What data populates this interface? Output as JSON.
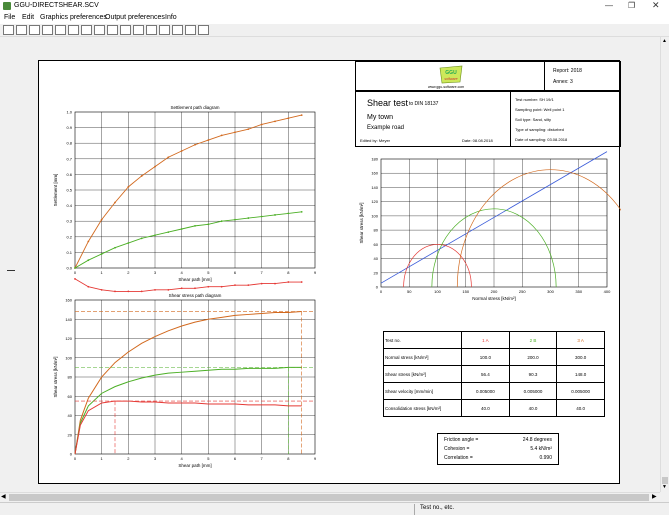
{
  "window": {
    "title": "GGU-DIRECTSHEAR.SCV"
  },
  "menu": [
    "File",
    "Edit",
    "Graphics preferences",
    "Output preferences",
    "Info"
  ],
  "toolbar_icons": [
    "new-icon",
    "open-icon",
    "save-icon",
    "save-as-icon",
    "print-icon",
    "filter-icon",
    "zoom-icon",
    "zoom-in-icon",
    "zoom-out-icon",
    "move-icon",
    "page-icon",
    "arrow-icon",
    "copy-icon",
    "paste-icon",
    "export-icon",
    "help-icon"
  ],
  "header": {
    "logo_text": "GGU software",
    "logo_url": "www.ggu-software.com",
    "report": "Report: 2018",
    "annex": "Annex: 3",
    "test_title": "Shear test",
    "test_norm": "to DIN 18137",
    "location": "My town",
    "project": "Example road",
    "edited_by": "Edited by:  Meyer",
    "date": "Date:  08.08.2018",
    "details": [
      "Test number:  SH 19/1",
      "Sampling point:  Well point 1",
      "Soil type:  Sand, silty",
      "Type of sampling:  disturbed",
      "Date of sampling:  03.08.2018"
    ]
  },
  "settlement_chart": {
    "title": "Settlement path diagram",
    "xlabel": "Shear path [mm]",
    "ylabel": "Settlement [mm]",
    "xticks": [
      "0",
      "1",
      "2",
      "3",
      "4",
      "5",
      "6",
      "7",
      "8",
      "9"
    ],
    "yticks": [
      "0.0",
      "0.1",
      "0.2",
      "0.3",
      "0.4",
      "0.5",
      "0.6",
      "0.7",
      "0.8",
      "0.9",
      "1.0"
    ]
  },
  "shear_chart": {
    "title": "Shear stress path diagram",
    "xlabel": "Shear path [mm]",
    "ylabel": "Shear stress [kN/m²]",
    "xticks": [
      "0",
      "1",
      "2",
      "3",
      "4",
      "5",
      "6",
      "7",
      "8",
      "9"
    ],
    "yticks": [
      "0",
      "20",
      "40",
      "60",
      "80",
      "100",
      "120",
      "140",
      "160"
    ]
  },
  "mohr_chart": {
    "xlabel": "Normal stress [kN/m²]",
    "ylabel": "Shear stress [kN/m²]",
    "xticks": [
      "0",
      "50",
      "100",
      "150",
      "200",
      "250",
      "300",
      "350",
      "400"
    ],
    "yticks": [
      "0",
      "20",
      "40",
      "60",
      "80",
      "100",
      "120",
      "140",
      "160",
      "180"
    ]
  },
  "chart_data": [
    {
      "type": "line",
      "title": "Settlement path diagram",
      "xlabel": "Shear path [mm]",
      "ylabel": "Settlement [mm]",
      "xlim": [
        0,
        9
      ],
      "ylim": [
        0,
        1.0
      ],
      "series": [
        {
          "color": "#d2691e",
          "x": [
            0,
            0.5,
            1,
            1.5,
            2,
            2.5,
            3,
            3.5,
            4,
            4.5,
            5,
            5.5,
            6,
            6.5,
            7,
            7.5,
            8,
            8.5
          ],
          "y": [
            0,
            0.17,
            0.31,
            0.42,
            0.52,
            0.59,
            0.65,
            0.71,
            0.75,
            0.79,
            0.82,
            0.85,
            0.87,
            0.89,
            0.92,
            0.94,
            0.96,
            0.98
          ]
        },
        {
          "color": "#4caf26",
          "x": [
            0,
            0.5,
            1,
            1.5,
            2,
            2.5,
            3,
            3.5,
            4,
            4.5,
            5,
            5.5,
            6,
            6.5,
            7,
            7.5,
            8,
            8.5
          ],
          "y": [
            0,
            0.05,
            0.09,
            0.13,
            0.16,
            0.19,
            0.21,
            0.23,
            0.25,
            0.27,
            0.28,
            0.3,
            0.31,
            0.32,
            0.33,
            0.34,
            0.35,
            0.36
          ]
        },
        {
          "color": "#e53935",
          "x": [
            0,
            0.5,
            1,
            1.5,
            2,
            2.5,
            3,
            3.5,
            4,
            4.5,
            5,
            5.5,
            6,
            6.5,
            7,
            7.5,
            8,
            8.5
          ],
          "y": [
            -0.07,
            -0.12,
            -0.14,
            -0.15,
            -0.15,
            -0.15,
            -0.14,
            -0.14,
            -0.13,
            -0.13,
            -0.12,
            -0.12,
            -0.11,
            -0.11,
            -0.1,
            -0.1,
            -0.09,
            -0.09
          ]
        }
      ]
    },
    {
      "type": "line",
      "title": "Shear stress path diagram",
      "xlabel": "Shear path [mm]",
      "ylabel": "Shear stress [kN/m²]",
      "xlim": [
        0,
        9
      ],
      "ylim": [
        0,
        160
      ],
      "series": [
        {
          "color": "#d2691e",
          "x": [
            0,
            0.2,
            0.5,
            1,
            1.5,
            2,
            2.5,
            3,
            3.5,
            4,
            4.5,
            5,
            5.5,
            6,
            6.5,
            7,
            7.5,
            8,
            8.5
          ],
          "y": [
            0,
            35,
            58,
            80,
            95,
            106,
            115,
            122,
            128,
            133,
            137,
            140,
            142,
            144,
            145,
            146,
            147,
            147,
            148
          ]
        },
        {
          "color": "#4caf26",
          "x": [
            0,
            0.2,
            0.5,
            1,
            1.5,
            2,
            2.5,
            3,
            3.5,
            4,
            4.5,
            5,
            5.5,
            6,
            6.5,
            7,
            7.5,
            8,
            8.5
          ],
          "y": [
            0,
            32,
            50,
            63,
            70,
            75,
            79,
            82,
            84,
            85,
            86,
            87,
            88,
            88,
            89,
            89,
            89,
            90,
            90
          ]
        },
        {
          "color": "#e53935",
          "x": [
            0,
            0.2,
            0.5,
            1,
            1.5,
            2,
            2.5,
            3,
            3.5,
            4,
            4.5,
            5,
            5.5,
            6,
            6.5,
            7,
            7.5,
            8,
            8.5
          ],
          "y": [
            0,
            30,
            45,
            53,
            55,
            55,
            54,
            54,
            53,
            53,
            53,
            52,
            52,
            52,
            51,
            51,
            51,
            50,
            50
          ]
        }
      ]
    },
    {
      "type": "line",
      "xlabel": "Normal stress [kN/m²]",
      "ylabel": "Shear stress [kN/m²]",
      "xlim": [
        0,
        400
      ],
      "ylim": [
        0,
        180
      ],
      "failure_line": {
        "x": [
          0,
          400
        ],
        "y": [
          5.4,
          190.4
        ]
      },
      "circles": [
        {
          "color": "#e53935",
          "center": 100,
          "radius": 60
        },
        {
          "color": "#4caf26",
          "center": 200,
          "radius": 110
        },
        {
          "color": "#d2691e",
          "center": 300,
          "radius": 165
        }
      ]
    }
  ],
  "results_table": {
    "header": [
      "Test no.",
      "1 A",
      "2 B",
      "3 A"
    ],
    "rows": [
      [
        "Normal stress [kN/m²]",
        "100.0",
        "200.0",
        "300.0"
      ],
      [
        "Shear stress [kN/m²]",
        "56.4",
        "90.3",
        "148.0"
      ],
      [
        "Shear velocity [mm/min]",
        "0.005000",
        "0.005000",
        "0.005000"
      ],
      [
        "Consolidation stress [kN/m²]",
        "40.0",
        "40.0",
        "40.0"
      ]
    ]
  },
  "summary": [
    {
      "label": "Friction angle  =",
      "value": "24.8 degrees"
    },
    {
      "label": "Cohesion  =",
      "value": "5.4 kN/m²"
    },
    {
      "label": "Correlation  =",
      "value": "0.990"
    }
  ],
  "status_text": "Test no., etc.",
  "colors": {
    "orange": "#d2691e",
    "green": "#4caf26",
    "red": "#e53935",
    "blue": "#3a5bd9"
  }
}
